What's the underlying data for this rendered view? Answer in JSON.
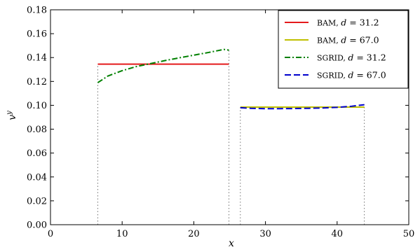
{
  "chart_data": {
    "type": "line",
    "xlabel": "x",
    "ylabel": "v^y",
    "xlim": [
      0,
      50
    ],
    "ylim": [
      0,
      0.18
    ],
    "x_ticks": [
      0,
      10,
      20,
      30,
      40,
      50
    ],
    "y_ticks": [
      0.0,
      0.02,
      0.04,
      0.06,
      0.08,
      0.1,
      0.12,
      0.14,
      0.16,
      0.18
    ],
    "x_tick_labels": [
      "0",
      "10",
      "20",
      "30",
      "40",
      "50"
    ],
    "y_tick_labels": [
      "0.00",
      "0.02",
      "0.04",
      "0.06",
      "0.08",
      "0.10",
      "0.12",
      "0.14",
      "0.16",
      "0.18"
    ],
    "grid": false,
    "legend_position": "top-right",
    "guide_lines_x": [
      6.6,
      24.9,
      26.5,
      43.8
    ],
    "series": [
      {
        "name": "BAM, d = 31.2",
        "legend_prefix": "BAM",
        "legend_suffix": "d = 31.2",
        "color": "#e41a1c",
        "style": "solid",
        "x": [
          6.6,
          24.9
        ],
        "y": [
          0.1345,
          0.1345
        ]
      },
      {
        "name": "BAM, d = 67.0",
        "legend_prefix": "BAM",
        "legend_suffix": "d = 67.0",
        "color": "#bfbf00",
        "style": "solid",
        "x": [
          26.5,
          43.8
        ],
        "y": [
          0.0985,
          0.0985
        ]
      },
      {
        "name": "SGRID, d = 31.2",
        "legend_prefix": "SGRID",
        "legend_suffix": "d = 31.2",
        "color": "#008000",
        "style": "dashdot",
        "x": [
          6.6,
          8,
          10,
          12,
          14,
          16,
          18,
          20,
          22,
          24.2,
          24.9
        ],
        "y": [
          0.119,
          0.1245,
          0.129,
          0.1325,
          0.135,
          0.1375,
          0.1398,
          0.142,
          0.1442,
          0.1468,
          0.1462
        ]
      },
      {
        "name": "SGRID, d = 67.0",
        "legend_prefix": "SGRID",
        "legend_suffix": "d = 67.0",
        "color": "#0000cc",
        "style": "dashed",
        "x": [
          26.5,
          28,
          30,
          32,
          34,
          36,
          38,
          40,
          42,
          43.8
        ],
        "y": [
          0.098,
          0.0975,
          0.0972,
          0.0972,
          0.0973,
          0.0975,
          0.0978,
          0.0983,
          0.0992,
          0.1005
        ]
      }
    ]
  }
}
